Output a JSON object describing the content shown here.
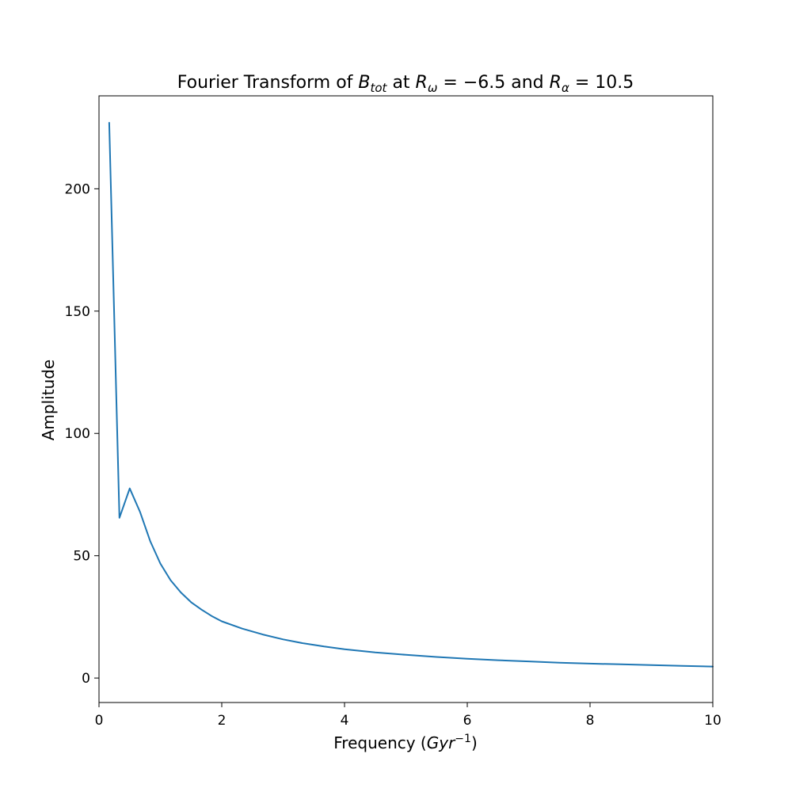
{
  "chart_data": {
    "type": "line",
    "title": {
      "prefix": "Fourier Transform of ",
      "b_sym": "B",
      "b_sub": "tot",
      "mid": " at ",
      "rw_sym": "R",
      "rw_sub": "ω",
      "rw_eq": " = −6.5",
      "and": " and ",
      "ra_sym": "R",
      "ra_sub": "α",
      "ra_eq": " = 10.5"
    },
    "xlabel": {
      "prefix": "Frequency (",
      "unit": "Gyr",
      "exp": "−1",
      "suffix": ")"
    },
    "ylabel": "Amplitude",
    "xlim": [
      0,
      10
    ],
    "ylim": [
      -10,
      238
    ],
    "xticks": [
      0,
      2,
      4,
      6,
      8,
      10
    ],
    "yticks": [
      0,
      50,
      100,
      150,
      200
    ],
    "grid": false,
    "line_color": "#1f77b4",
    "series": [
      {
        "x": [
          0.167,
          0.333,
          0.5,
          0.667,
          0.833,
          1.0,
          1.167,
          1.333,
          1.5,
          1.667,
          1.833,
          2.0,
          2.333,
          2.667,
          3.0,
          3.333,
          3.667,
          4.0,
          4.5,
          5.0,
          5.5,
          6.0,
          6.5,
          7.0,
          7.5,
          8.0,
          8.5,
          9.0,
          9.5,
          10.0
        ],
        "values": [
          227,
          65.5,
          77.5,
          68,
          56,
          46.8,
          40,
          35,
          31,
          28,
          25.4,
          23.2,
          20.2,
          17.8,
          15.8,
          14.2,
          12.9,
          11.8,
          10.5,
          9.5,
          8.6,
          7.9,
          7.3,
          6.8,
          6.3,
          5.9,
          5.6,
          5.3,
          5.0,
          4.7
        ]
      }
    ]
  }
}
